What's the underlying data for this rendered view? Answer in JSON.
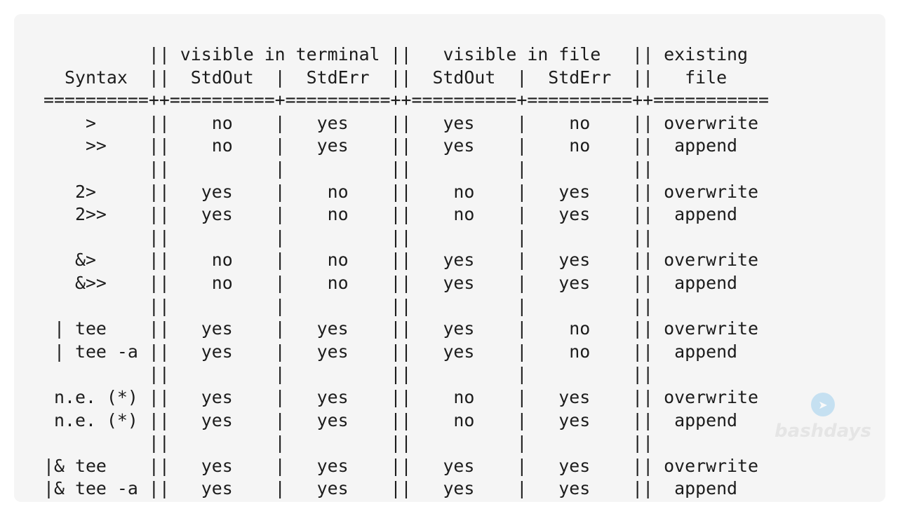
{
  "table_lines": [
    "          || visible in terminal ||   visible in file   || existing",
    "  Syntax  ||  StdOut  |  StdErr  ||  StdOut  |  StdErr  ||   file",
    "==========++==========+==========++==========+==========++===========",
    "    >     ||    no    |   yes    ||   yes    |    no    || overwrite",
    "    >>    ||    no    |   yes    ||   yes    |    no    ||  append",
    "          ||          |          ||          |          ||",
    "   2>     ||   yes    |    no    ||    no    |   yes    || overwrite",
    "   2>>    ||   yes    |    no    ||    no    |   yes    ||  append",
    "          ||          |          ||          |          ||",
    "   &>     ||    no    |    no    ||   yes    |   yes    || overwrite",
    "   &>>    ||    no    |    no    ||   yes    |   yes    ||  append",
    "          ||          |          ||          |          ||",
    " | tee    ||   yes    |   yes    ||   yes    |    no    || overwrite",
    " | tee -a ||   yes    |   yes    ||   yes    |    no    ||  append",
    "          ||          |          ||          |          ||",
    " n.e. (*) ||   yes    |   yes    ||    no    |   yes    || overwrite",
    " n.e. (*) ||   yes    |   yes    ||    no    |   yes    ||  append",
    "          ||          |          ||          |          ||",
    "|& tee    ||   yes    |   yes    ||   yes    |   yes    || overwrite",
    "|& tee -a ||   yes    |   yes    ||   yes    |   yes    ||  append"
  ],
  "watermark": {
    "text": "bashdays",
    "icon": "telegram-icon"
  }
}
